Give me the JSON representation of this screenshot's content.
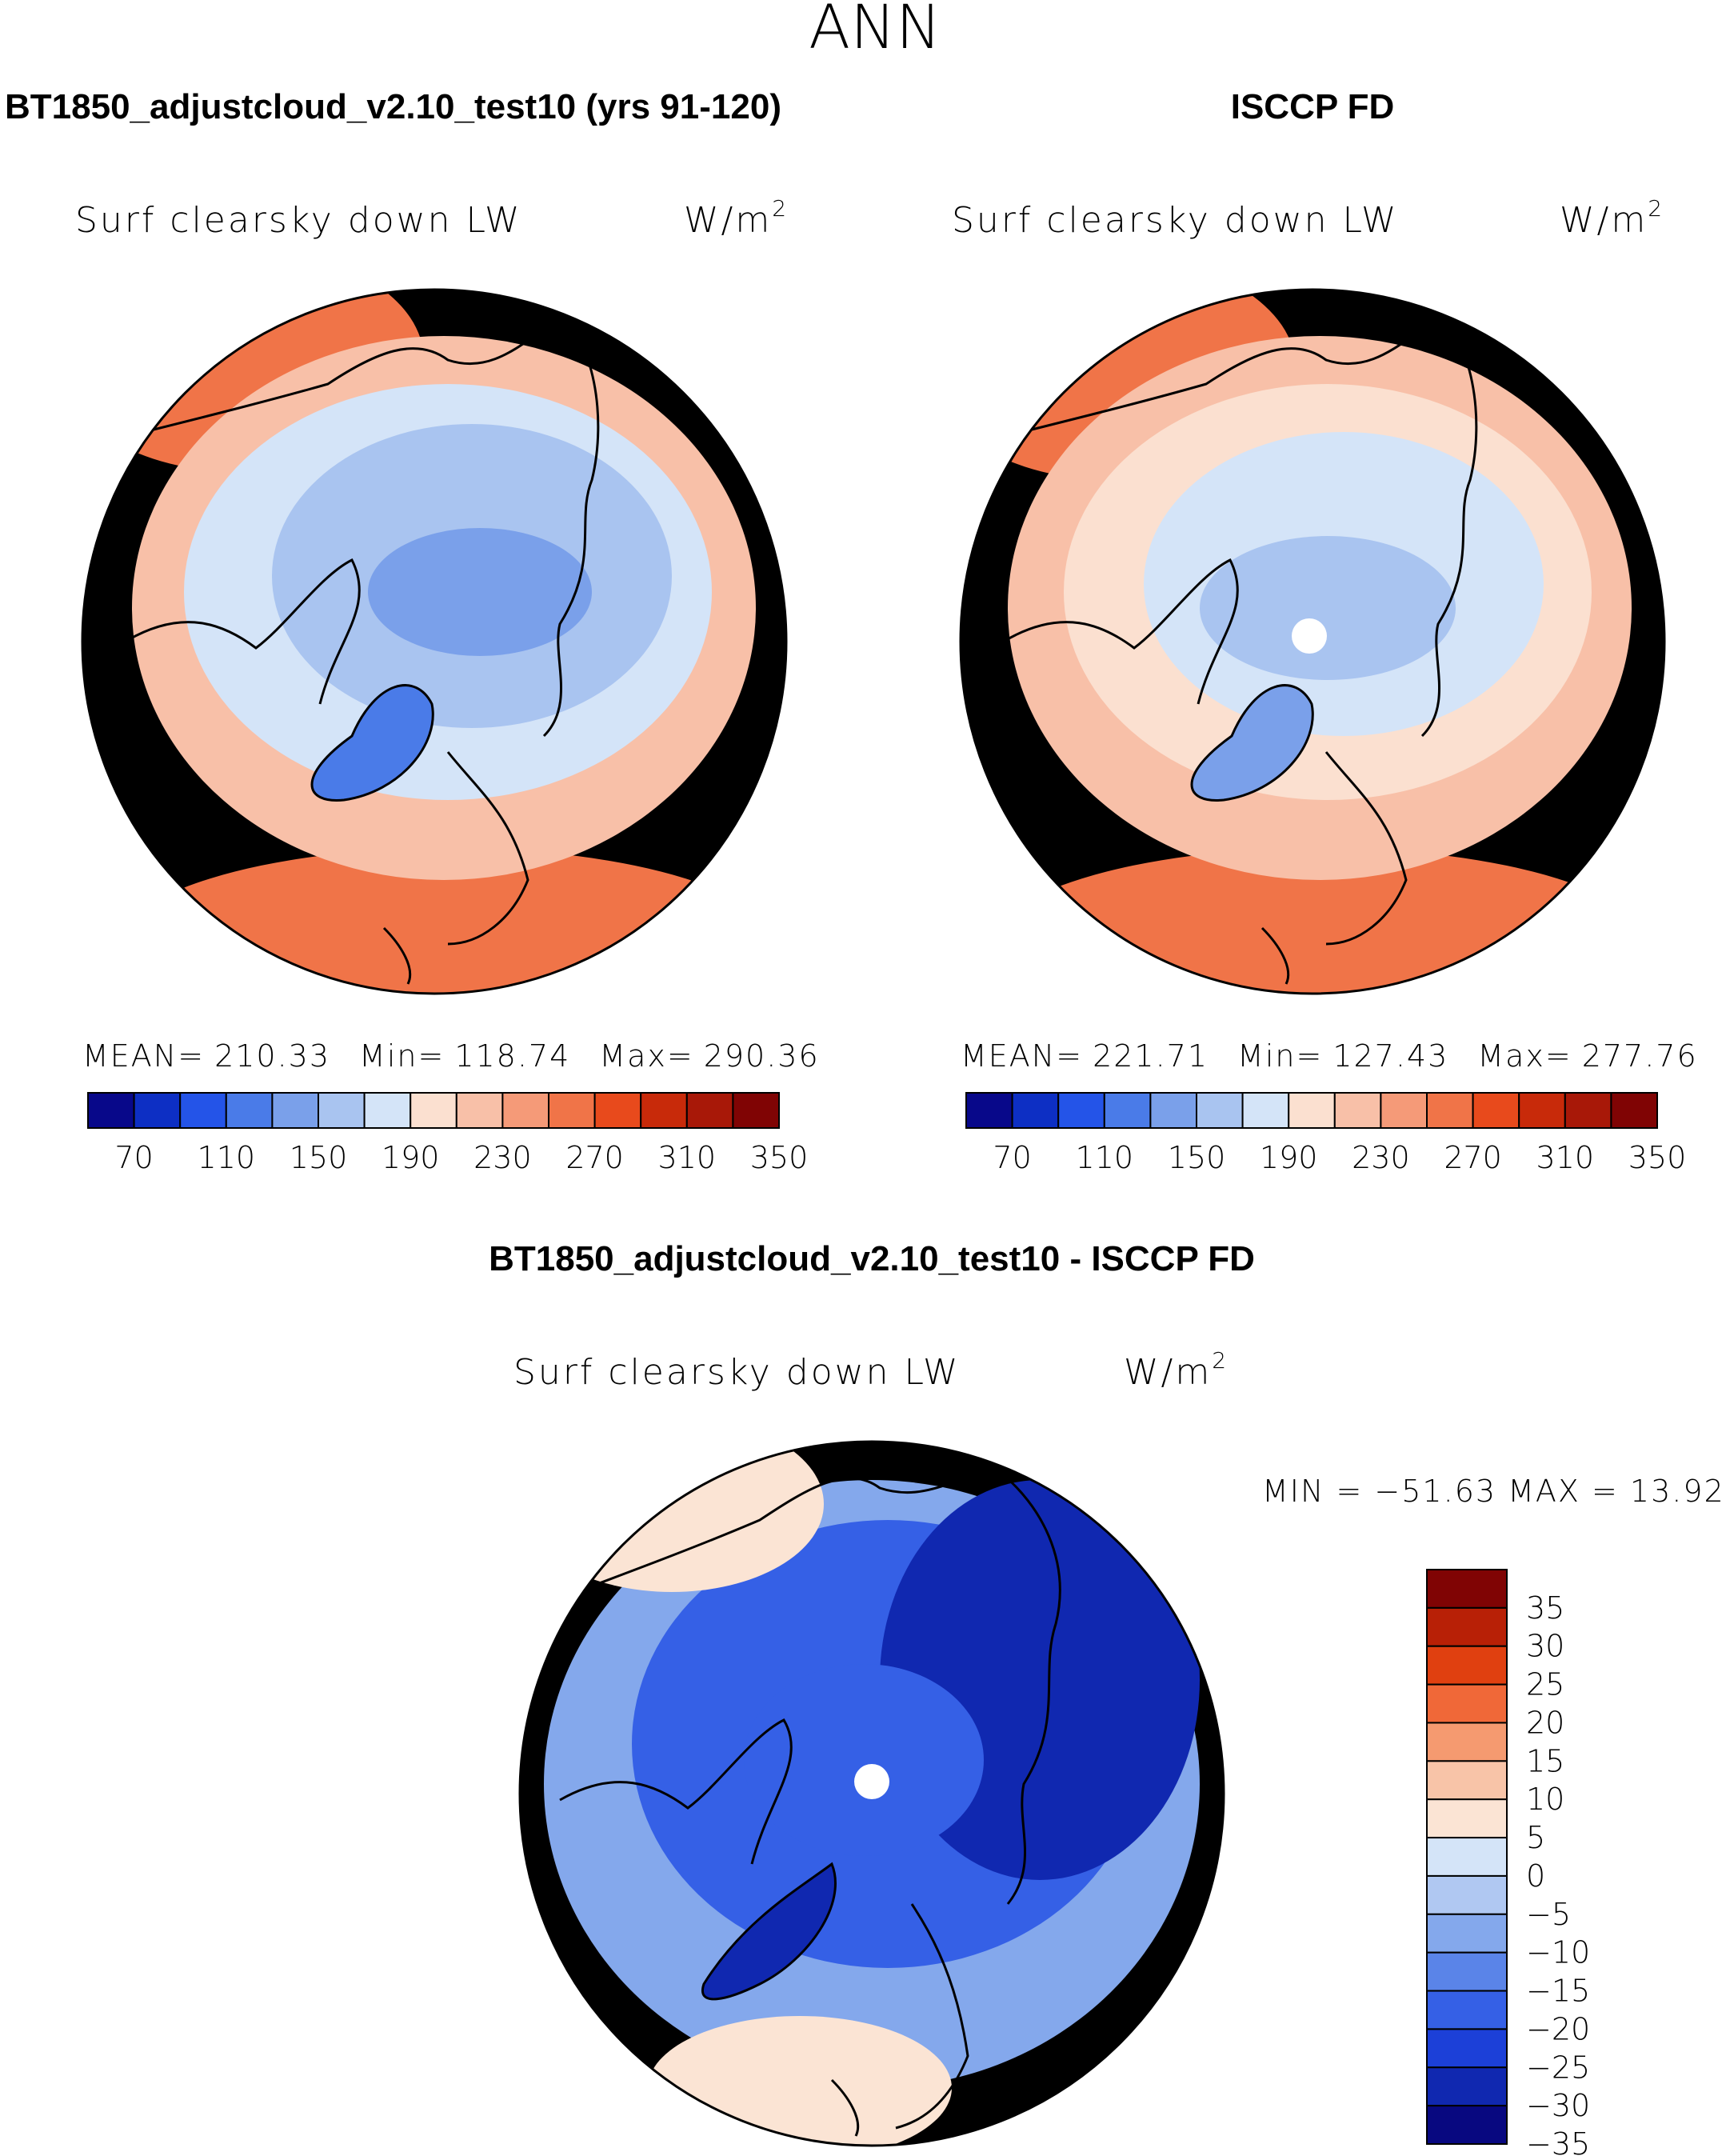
{
  "figure": {
    "season": "ANN"
  },
  "panels": [
    {
      "title": "BT1850_adjustcloud_v2.10_test10 (yrs 91-120)",
      "variable": "Surf clearsky down LW",
      "units": "W/m",
      "units_exp": "2",
      "stats": {
        "mean_label": "MEAN=",
        "mean": "210.33",
        "min_label": "Min=",
        "min": "118.74",
        "max_label": "Max=",
        "max": "290.36"
      },
      "colorbar_ticks": [
        "70",
        "110",
        "150",
        "190",
        "230",
        "270",
        "310",
        "350"
      ]
    },
    {
      "title": "ISCCP FD",
      "variable": "Surf clearsky down LW",
      "units": "W/m",
      "units_exp": "2",
      "stats": {
        "mean_label": "MEAN=",
        "mean": "221.71",
        "min_label": "Min=",
        "min": "127.43",
        "max_label": "Max=",
        "max": "277.76"
      },
      "colorbar_ticks": [
        "70",
        "110",
        "150",
        "190",
        "230",
        "270",
        "310",
        "350"
      ]
    },
    {
      "title": "BT1850_adjustcloud_v2.10_test10 - ISCCP FD",
      "variable": "Surf clearsky down LW",
      "units": "W/m",
      "units_exp": "2",
      "minmax_text": "MIN = −51.63 MAX =  13.92",
      "colorbar_ticks": [
        "35",
        "30",
        "25",
        "20",
        "15",
        "10",
        "5",
        "0",
        "−5",
        "−10",
        "−15",
        "−20",
        "−25",
        "−30",
        "−35"
      ]
    }
  ],
  "colors": {
    "abs_scale": [
      "#08088a",
      "#0d2fc4",
      "#2454e8",
      "#4a7be8",
      "#7aa0ea",
      "#a9c4f0",
      "#d4e4f8",
      "#fbe0d0",
      "#f8c0a8",
      "#f59a78",
      "#f07448",
      "#e84a1c",
      "#c82a0a",
      "#a81808",
      "#800404"
    ],
    "diff_scale": [
      "#800404",
      "#b82006",
      "#e04010",
      "#f06838",
      "#f59a70",
      "#f8c4a8",
      "#fbe4d4",
      "#d4e4f8",
      "#b0c8f2",
      "#84a8ec",
      "#5a84e8",
      "#3560e6",
      "#1c40d8",
      "#1028b0",
      "#080880"
    ]
  },
  "chart_data": [
    {
      "type": "polar-map",
      "title": "BT1850_adjustcloud_v2.10_test10 (yrs 91-120)",
      "projection": "north polar stereographic",
      "levels": [
        70,
        90,
        110,
        130,
        150,
        170,
        190,
        210,
        230,
        250,
        270,
        290,
        310,
        330,
        350
      ],
      "regions": [
        {
          "name": "pole",
          "value": 165
        },
        {
          "name": "arctic-ring",
          "value": 185
        },
        {
          "name": "subarctic-ring",
          "value": 205
        },
        {
          "name": "mid-ring",
          "value": 230
        },
        {
          "name": "outer-ring",
          "value": 255
        },
        {
          "name": "greenland-ice",
          "value": 130
        },
        {
          "name": "pacific-warm",
          "value": 275
        },
        {
          "name": "atlantic-warm",
          "value": 280
        }
      ]
    },
    {
      "type": "polar-map",
      "title": "ISCCP FD",
      "projection": "north polar stereographic",
      "levels": [
        70,
        90,
        110,
        130,
        150,
        170,
        190,
        210,
        230,
        250,
        270,
        290,
        310,
        330,
        350
      ],
      "regions": [
        {
          "name": "pole",
          "value": 180
        },
        {
          "name": "arctic-ring",
          "value": 195
        },
        {
          "name": "subarctic-ring",
          "value": 215
        },
        {
          "name": "mid-ring",
          "value": 240
        },
        {
          "name": "outer-ring",
          "value": 260
        },
        {
          "name": "greenland-ice",
          "value": 150
        },
        {
          "name": "pacific-warm",
          "value": 272
        },
        {
          "name": "atlantic-warm",
          "value": 275
        }
      ],
      "missing_pole": true
    },
    {
      "type": "polar-map",
      "title": "BT1850_adjustcloud_v2.10_test10 - ISCCP FD",
      "projection": "north polar stereographic",
      "levels": [
        -35,
        -30,
        -25,
        -20,
        -15,
        -10,
        -5,
        0,
        5,
        10,
        15,
        20,
        25,
        30,
        35
      ],
      "regions": [
        {
          "name": "pole",
          "value": -18
        },
        {
          "name": "siberia",
          "value": -27
        },
        {
          "name": "arctic-ring",
          "value": -17
        },
        {
          "name": "mid-ring",
          "value": -9
        },
        {
          "name": "outer-ring",
          "value": -5
        },
        {
          "name": "greenland-ice",
          "value": -28
        },
        {
          "name": "pacific-warm",
          "value": 8
        },
        {
          "name": "atlantic-warm",
          "value": 7
        }
      ],
      "missing_pole": true
    }
  ]
}
